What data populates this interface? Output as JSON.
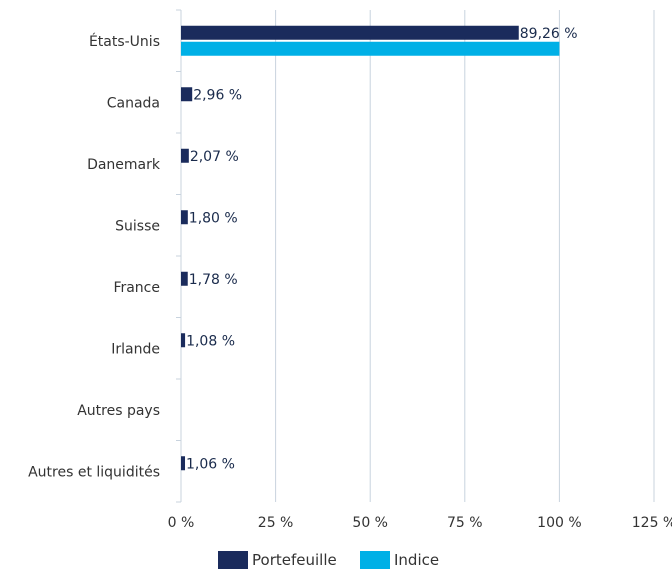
{
  "chart_data": {
    "type": "bar",
    "orientation": "horizontal",
    "categories": [
      "États-Unis",
      "Canada",
      "Danemark",
      "Suisse",
      "France",
      "Irlande",
      "Autres pays",
      "Autres et liquidités"
    ],
    "series": [
      {
        "name": "Portefeuille",
        "color": "#1a2b5c",
        "values": [
          89.26,
          2.96,
          2.07,
          1.8,
          1.78,
          1.08,
          0,
          1.06
        ],
        "labels": [
          "89,26 %",
          "2,96 %",
          "2,07 %",
          "1,80 %",
          "1,78 %",
          "1,08 %",
          "",
          "1,06 %"
        ]
      },
      {
        "name": "Indice",
        "color": "#00b0e6",
        "values": [
          100,
          0,
          0,
          0,
          0,
          0,
          0,
          0
        ]
      }
    ],
    "x_ticks": [
      "0 %",
      "25 %",
      "50 %",
      "75 %",
      "100 %",
      "125 %"
    ],
    "xlim": [
      0,
      125
    ],
    "grid": true,
    "legend_position": "bottom"
  }
}
